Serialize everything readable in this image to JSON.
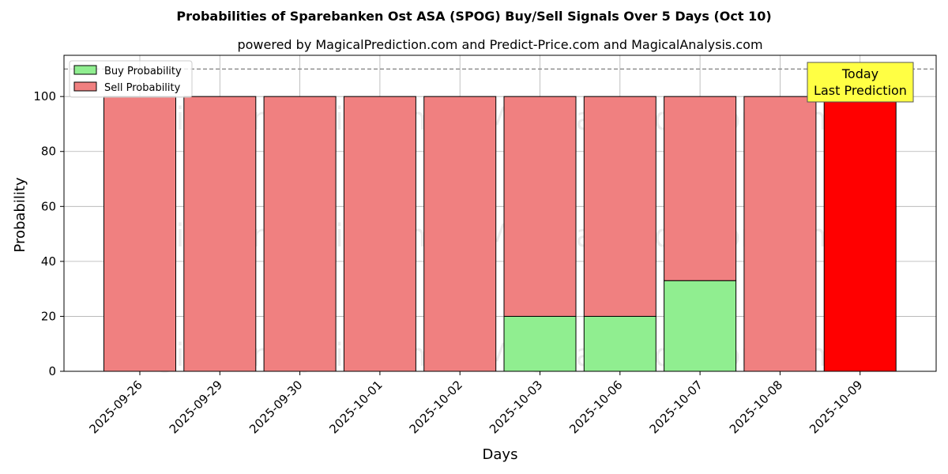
{
  "chart_data": {
    "type": "bar",
    "stacked": true,
    "title": "Probabilities of Sparebanken Ost ASA (SPOG) Buy/Sell Signals Over 5 Days (Oct 10)",
    "subtitle": "powered by MagicalPrediction.com and Predict-Price.com and MagicalAnalysis.com",
    "xlabel": "Days",
    "ylabel": "Probability",
    "ylim": [
      0,
      115
    ],
    "yticks": [
      0,
      20,
      40,
      60,
      80,
      100
    ],
    "grid": true,
    "legend_position": "top-left",
    "reference_line": 110,
    "categories": [
      "2025-09-26",
      "2025-09-29",
      "2025-09-30",
      "2025-10-01",
      "2025-10-02",
      "2025-10-03",
      "2025-10-06",
      "2025-10-07",
      "2025-10-08",
      "2025-10-09"
    ],
    "series": [
      {
        "name": "Buy Probability",
        "color": "#90ee90",
        "values": [
          0,
          0,
          0,
          0,
          0,
          20,
          20,
          33,
          0,
          0
        ]
      },
      {
        "name": "Sell Probability",
        "color": "#f08080",
        "values": [
          100,
          100,
          100,
          100,
          100,
          80,
          80,
          67,
          100,
          100
        ]
      }
    ],
    "highlight": {
      "index": 9,
      "color": "#ff0000"
    },
    "annotation": {
      "line1": "Today",
      "line2": "Last Prediction",
      "background": "#ffff44"
    },
    "watermarks": [
      "MagicalAnalysis.com",
      "MagicalPrediction.com"
    ]
  }
}
